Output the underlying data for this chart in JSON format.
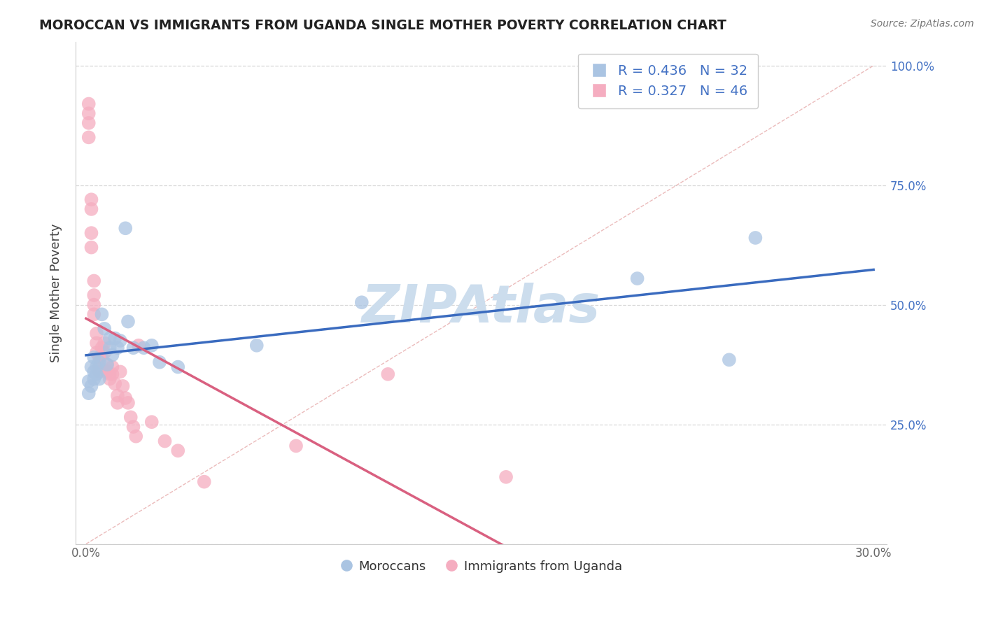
{
  "title": "MOROCCAN VS IMMIGRANTS FROM UGANDA SINGLE MOTHER POVERTY CORRELATION CHART",
  "source": "Source: ZipAtlas.com",
  "ylabel": "Single Mother Poverty",
  "x_ticks": [
    0.0,
    0.05,
    0.1,
    0.15,
    0.2,
    0.25,
    0.3
  ],
  "x_tick_labels": [
    "0.0%",
    "",
    "",
    "",
    "",
    "",
    "30.0%"
  ],
  "y_ticks": [
    0.0,
    0.25,
    0.5,
    0.75,
    1.0
  ],
  "y_tick_labels_right": [
    "",
    "25.0%",
    "50.0%",
    "75.0%",
    "100.0%"
  ],
  "xlim": [
    -0.004,
    0.305
  ],
  "ylim": [
    0.0,
    1.05
  ],
  "moroccan_R": 0.436,
  "moroccan_N": 32,
  "uganda_R": 0.327,
  "uganda_N": 46,
  "moroccan_color": "#aac4e2",
  "uganda_color": "#f5adc0",
  "moroccan_line_color": "#3a6bbf",
  "uganda_line_color": "#d96080",
  "ref_line_color": "#e8b0b0",
  "legend_text_color": "#4472c4",
  "watermark": "ZIPAtlas",
  "watermark_color": "#ccdded",
  "background_color": "#ffffff",
  "grid_color": "#d8d8d8",
  "moroccan_x": [
    0.001,
    0.001,
    0.002,
    0.002,
    0.003,
    0.003,
    0.003,
    0.004,
    0.004,
    0.005,
    0.005,
    0.006,
    0.007,
    0.008,
    0.009,
    0.009,
    0.01,
    0.011,
    0.012,
    0.013,
    0.015,
    0.016,
    0.018,
    0.022,
    0.025,
    0.028,
    0.035,
    0.065,
    0.105,
    0.21,
    0.245,
    0.255
  ],
  "moroccan_y": [
    0.315,
    0.34,
    0.33,
    0.37,
    0.345,
    0.36,
    0.39,
    0.355,
    0.37,
    0.345,
    0.38,
    0.48,
    0.45,
    0.375,
    0.41,
    0.43,
    0.395,
    0.43,
    0.41,
    0.425,
    0.66,
    0.465,
    0.41,
    0.41,
    0.415,
    0.38,
    0.37,
    0.415,
    0.505,
    0.555,
    0.385,
    0.64
  ],
  "uganda_x": [
    0.001,
    0.001,
    0.001,
    0.001,
    0.002,
    0.002,
    0.002,
    0.002,
    0.003,
    0.003,
    0.003,
    0.003,
    0.004,
    0.004,
    0.004,
    0.005,
    0.005,
    0.005,
    0.006,
    0.006,
    0.007,
    0.007,
    0.008,
    0.008,
    0.009,
    0.009,
    0.01,
    0.01,
    0.011,
    0.012,
    0.012,
    0.013,
    0.014,
    0.015,
    0.016,
    0.017,
    0.018,
    0.019,
    0.02,
    0.025,
    0.03,
    0.035,
    0.045,
    0.08,
    0.115,
    0.16
  ],
  "uganda_y": [
    0.92,
    0.9,
    0.88,
    0.85,
    0.72,
    0.7,
    0.65,
    0.62,
    0.55,
    0.52,
    0.5,
    0.48,
    0.44,
    0.42,
    0.4,
    0.39,
    0.37,
    0.36,
    0.41,
    0.395,
    0.42,
    0.4,
    0.375,
    0.36,
    0.355,
    0.345,
    0.37,
    0.355,
    0.335,
    0.31,
    0.295,
    0.36,
    0.33,
    0.305,
    0.295,
    0.265,
    0.245,
    0.225,
    0.415,
    0.255,
    0.215,
    0.195,
    0.13,
    0.205,
    0.355,
    0.14
  ]
}
